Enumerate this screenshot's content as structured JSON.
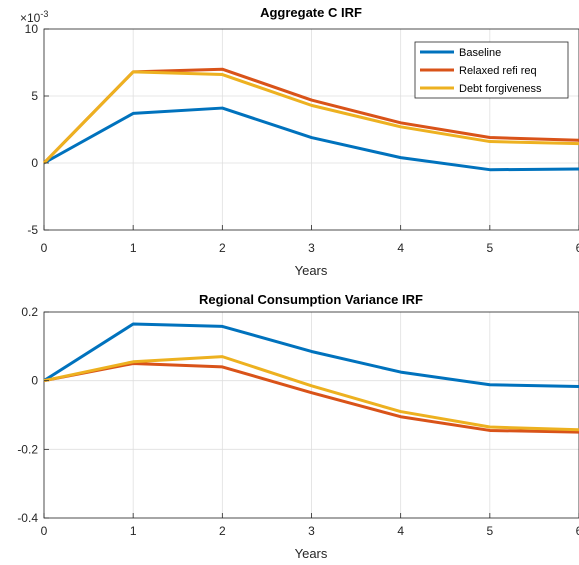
{
  "chart_data": [
    {
      "type": "line",
      "title": "Aggregate C IRF",
      "xlabel": "Years",
      "ylabel": "",
      "exponent_label": "×10",
      "exponent_power": "-3",
      "x": [
        0,
        1,
        2,
        3,
        4,
        5,
        6
      ],
      "xlim": [
        0,
        6
      ],
      "ylim": [
        -5,
        10
      ],
      "xticks": [
        "0",
        "1",
        "2",
        "3",
        "4",
        "5",
        "6"
      ],
      "yticks": [
        {
          "value": -5,
          "label": "-5"
        },
        {
          "value": 0,
          "label": "0"
        },
        {
          "value": 5,
          "label": "5"
        },
        {
          "value": 10,
          "label": "10"
        }
      ],
      "legend_position": "top-right",
      "series": [
        {
          "name": "Baseline",
          "color": "#0072BD",
          "values": [
            0,
            3.7,
            4.1,
            1.9,
            0.4,
            -0.5,
            -0.45
          ]
        },
        {
          "name": "Relaxed refi req",
          "color": "#D95319",
          "values": [
            0,
            6.8,
            7.0,
            4.7,
            3.0,
            1.9,
            1.7
          ]
        },
        {
          "name": "Debt forgiveness",
          "color": "#EDB120",
          "values": [
            0,
            6.8,
            6.6,
            4.3,
            2.7,
            1.6,
            1.45
          ]
        }
      ]
    },
    {
      "type": "line",
      "title": "Regional Consumption Variance IRF",
      "xlabel": "Years",
      "ylabel": "",
      "x": [
        0,
        1,
        2,
        3,
        4,
        5,
        6
      ],
      "xlim": [
        0,
        6
      ],
      "ylim": [
        -0.4,
        0.2
      ],
      "xticks": [
        "0",
        "1",
        "2",
        "3",
        "4",
        "5",
        "6"
      ],
      "yticks": [
        {
          "value": -0.4,
          "label": "-0.4"
        },
        {
          "value": -0.2,
          "label": "-0.2"
        },
        {
          "value": 0,
          "label": "0"
        },
        {
          "value": 0.2,
          "label": "0.2"
        }
      ],
      "series": [
        {
          "name": "Baseline",
          "color": "#0072BD",
          "values": [
            0,
            0.165,
            0.158,
            0.085,
            0.025,
            -0.012,
            -0.017
          ]
        },
        {
          "name": "Relaxed refi req",
          "color": "#D95319",
          "values": [
            0,
            0.05,
            0.04,
            -0.035,
            -0.105,
            -0.145,
            -0.15
          ]
        },
        {
          "name": "Debt forgiveness",
          "color": "#EDB120",
          "values": [
            0,
            0.055,
            0.07,
            -0.015,
            -0.09,
            -0.135,
            -0.143
          ]
        }
      ]
    }
  ]
}
